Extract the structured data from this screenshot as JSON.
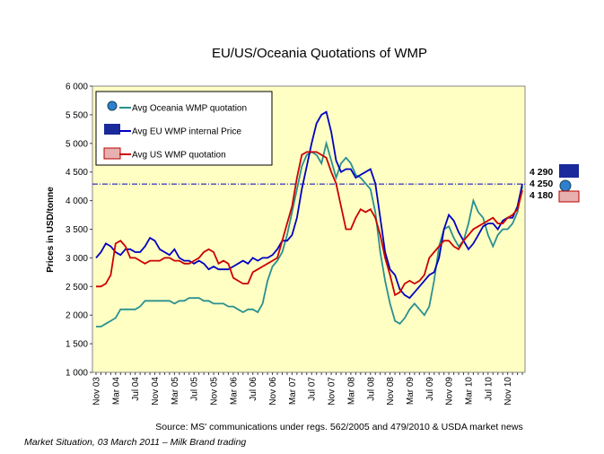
{
  "chart_data": {
    "type": "line",
    "title": "EU/US/Oceania Quotations of WMP",
    "y_label": "Prices in USD/tonne",
    "source": "Source: MS' communications under regs. 562/2005 and 479/2010  & USDA market news",
    "footer": "Market Situation,  03 March 2011 – Milk Brand trading",
    "ylim": [
      1000,
      6000
    ],
    "yticks": [
      {
        "value": 1000,
        "label": "1 000"
      },
      {
        "value": 1500,
        "label": "1 500"
      },
      {
        "value": 2000,
        "label": "2 000"
      },
      {
        "value": 2500,
        "label": "2 500"
      },
      {
        "value": 3000,
        "label": "3 000"
      },
      {
        "value": 3500,
        "label": "3 500"
      },
      {
        "value": 4000,
        "label": "4 000"
      },
      {
        "value": 4500,
        "label": "4 500"
      },
      {
        "value": 5000,
        "label": "5 000"
      },
      {
        "value": 5500,
        "label": "5 500"
      },
      {
        "value": 6000,
        "label": "6 000"
      }
    ],
    "ref_line": 4290,
    "categories": [
      "Nov 03",
      null,
      null,
      null,
      "Mar 04",
      null,
      null,
      null,
      "Jul 04",
      null,
      null,
      null,
      "Nov 04",
      null,
      null,
      null,
      "Mar 05",
      null,
      null,
      null,
      "Jul 05",
      null,
      null,
      null,
      "Nov 05",
      null,
      null,
      null,
      "Mar 06",
      null,
      null,
      null,
      "Jul 06",
      null,
      null,
      null,
      "Nov 06",
      null,
      null,
      null,
      "Mar 07",
      null,
      null,
      null,
      "Jul 07",
      null,
      null,
      null,
      "Nov 07",
      null,
      null,
      null,
      "Mar 08",
      null,
      null,
      null,
      "Jul 08",
      null,
      null,
      null,
      "Nov 08",
      null,
      null,
      null,
      "Mar 09",
      null,
      null,
      null,
      "Jul 09",
      null,
      null,
      null,
      "Nov 09",
      null,
      null,
      null,
      "Mar 10",
      null,
      null,
      null,
      "Jul 10",
      null,
      null,
      null,
      "Nov 10",
      null,
      null,
      null
    ],
    "series": [
      {
        "name": "Avg Oceania WMP quotation",
        "color": "#2a9090",
        "end_label": "4 250",
        "values": [
          1800,
          1800,
          1850,
          1900,
          1950,
          2100,
          2100,
          2100,
          2100,
          2150,
          2250,
          2250,
          2250,
          2250,
          2250,
          2250,
          2200,
          2250,
          2250,
          2300,
          2300,
          2300,
          2250,
          2250,
          2200,
          2200,
          2200,
          2150,
          2150,
          2100,
          2050,
          2100,
          2100,
          2050,
          2200,
          2600,
          2850,
          2950,
          3100,
          3400,
          3800,
          4200,
          4600,
          4800,
          4850,
          4800,
          4650,
          5000,
          4700,
          4400,
          4650,
          4750,
          4650,
          4450,
          4400,
          4300,
          4200,
          3800,
          3100,
          2600,
          2200,
          1900,
          1850,
          1950,
          2100,
          2200,
          2100,
          2000,
          2150,
          2600,
          3200,
          3500,
          3550,
          3350,
          3200,
          3300,
          3600,
          4000,
          3800,
          3700,
          3400,
          3200,
          3400,
          3500,
          3500,
          3600,
          3800,
          4250
        ]
      },
      {
        "name": "Avg EU WMP internal Price",
        "color": "#0000c0",
        "end_label": "4 290",
        "values": [
          3000,
          3100,
          3250,
          3200,
          3100,
          3050,
          3150,
          3150,
          3100,
          3100,
          3200,
          3350,
          3300,
          3150,
          3100,
          3050,
          3150,
          3000,
          2950,
          2950,
          2900,
          2950,
          2900,
          2800,
          2850,
          2800,
          2800,
          2800,
          2850,
          2900,
          2950,
          2900,
          3000,
          2950,
          3000,
          3000,
          3050,
          3150,
          3300,
          3300,
          3400,
          3700,
          4200,
          4600,
          5000,
          5350,
          5500,
          5550,
          5200,
          4700,
          4500,
          4550,
          4550,
          4400,
          4450,
          4500,
          4550,
          4300,
          3700,
          3100,
          2800,
          2700,
          2450,
          2350,
          2300,
          2400,
          2500,
          2600,
          2700,
          2750,
          3000,
          3500,
          3750,
          3650,
          3450,
          3300,
          3150,
          3250,
          3400,
          3550,
          3600,
          3600,
          3500,
          3650,
          3700,
          3700,
          3900,
          4290
        ]
      },
      {
        "name": "Avg US WMP quotation",
        "color": "#cc0000",
        "end_label": "4 180",
        "values": [
          2500,
          2500,
          2550,
          2700,
          3250,
          3300,
          3200,
          3000,
          3000,
          2950,
          2900,
          2950,
          2950,
          2950,
          3000,
          3000,
          2950,
          2950,
          2900,
          2900,
          2950,
          3000,
          3100,
          3150,
          3100,
          2900,
          2950,
          2900,
          2650,
          2600,
          2550,
          2550,
          2750,
          2800,
          2850,
          2900,
          2950,
          3000,
          3300,
          3600,
          3900,
          4400,
          4800,
          4850,
          4850,
          4850,
          4800,
          4750,
          4500,
          4300,
          3900,
          3500,
          3500,
          3700,
          3850,
          3800,
          3850,
          3700,
          3400,
          3000,
          2700,
          2350,
          2400,
          2550,
          2600,
          2550,
          2600,
          2700,
          3000,
          3100,
          3200,
          3300,
          3300,
          3200,
          3150,
          3300,
          3400,
          3500,
          3550,
          3600,
          3650,
          3700,
          3600,
          3600,
          3700,
          3750,
          3850,
          4180
        ]
      }
    ]
  }
}
